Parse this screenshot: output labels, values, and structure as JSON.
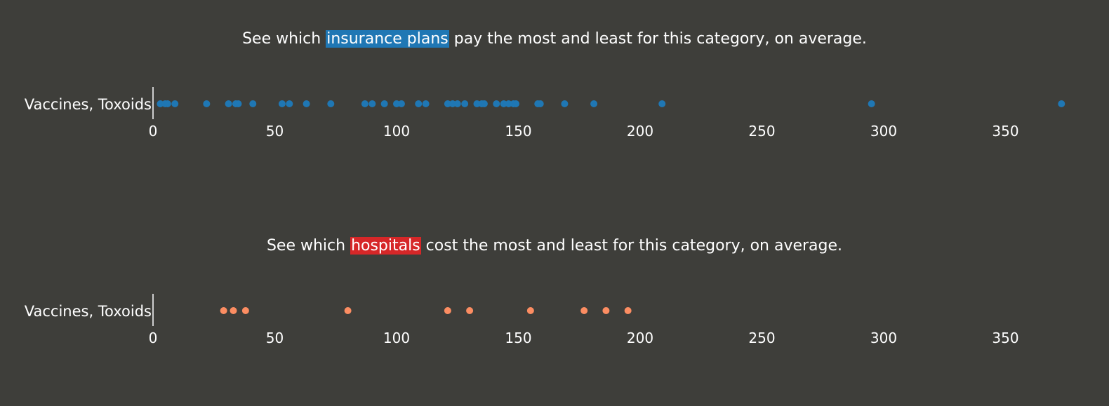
{
  "panels": [
    {
      "id": "insurance",
      "prompt": {
        "before": "See which ",
        "highlight": "insurance plans",
        "after": " pay the most and least for this category, on average."
      }
    },
    {
      "id": "hospitals",
      "prompt": {
        "before": "See which ",
        "highlight": "hospitals",
        "after": " cost the most and least for this category, on average."
      }
    }
  ],
  "colors": {
    "background": "#3e3e3a",
    "insurance_highlight": "#1f77b4",
    "hospital_highlight": "#d62728",
    "insurance_dot": "#1f77b4",
    "hospital_dot": "#fc8d62",
    "text": "#ffffff"
  },
  "chart_data": [
    {
      "type": "scatter",
      "category": "Vaccines, Toxoids",
      "xlim": [
        0,
        373
      ],
      "xticks": [
        0,
        50,
        100,
        150,
        200,
        250,
        300,
        350
      ],
      "grid": false,
      "values": [
        3,
        5,
        6,
        9,
        22,
        31,
        34,
        35,
        41,
        53,
        56,
        63,
        73,
        87,
        90,
        95,
        100,
        102,
        109,
        112,
        121,
        123,
        125,
        128,
        133,
        135,
        136,
        141,
        144,
        146,
        148,
        149,
        158,
        159,
        169,
        181,
        209,
        295,
        373
      ]
    },
    {
      "type": "scatter",
      "category": "Vaccines, Toxoids",
      "xlim": [
        0,
        373
      ],
      "xticks": [
        0,
        50,
        100,
        150,
        200,
        250,
        300,
        350
      ],
      "grid": false,
      "values": [
        29,
        33,
        38,
        80,
        121,
        130,
        155,
        177,
        186,
        195
      ]
    }
  ]
}
